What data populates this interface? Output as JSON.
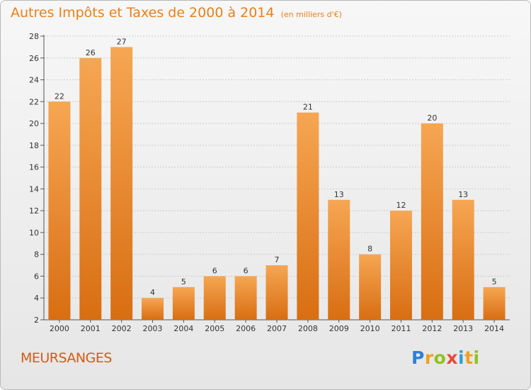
{
  "header": {
    "title": "Autres Impôts et Taxes de 2000 à 2014",
    "subtitle": "(en milliers d'€)"
  },
  "footer": {
    "commune": "MEURSANGES",
    "logo_text": "Proxiti",
    "logo_letters": [
      {
        "char": "P",
        "color": "#2f7fd8"
      },
      {
        "char": "r",
        "color": "#f0a020"
      },
      {
        "char": "o",
        "color": "#8fc31f"
      },
      {
        "char": "x",
        "color": "#e84a3c"
      },
      {
        "char": "i",
        "color": "#2f9fd8"
      },
      {
        "char": "t",
        "color": "#f0a020"
      },
      {
        "char": "i",
        "color": "#8fc31f"
      }
    ]
  },
  "colors": {
    "accent": "#e8801a",
    "bar_top": "#f6a653",
    "bar_bottom": "#d86e12",
    "grid": "#cccccc"
  },
  "chart_data": {
    "type": "bar",
    "categories": [
      "2000",
      "2001",
      "2002",
      "2003",
      "2004",
      "2005",
      "2006",
      "2007",
      "2008",
      "2009",
      "2010",
      "2011",
      "2012",
      "2013",
      "2014"
    ],
    "values": [
      22,
      26,
      27,
      4,
      5,
      6,
      6,
      7,
      21,
      13,
      8,
      12,
      20,
      13,
      5
    ],
    "title": "Autres Impôts et Taxes de 2000 à 2014",
    "subtitle": "(en milliers d'€)",
    "xlabel": "",
    "ylabel": "",
    "ylim": [
      2,
      28
    ],
    "yticks": [
      2,
      4,
      6,
      8,
      10,
      12,
      14,
      16,
      18,
      20,
      22,
      24,
      26,
      28
    ],
    "grid": true,
    "legend": "none"
  }
}
